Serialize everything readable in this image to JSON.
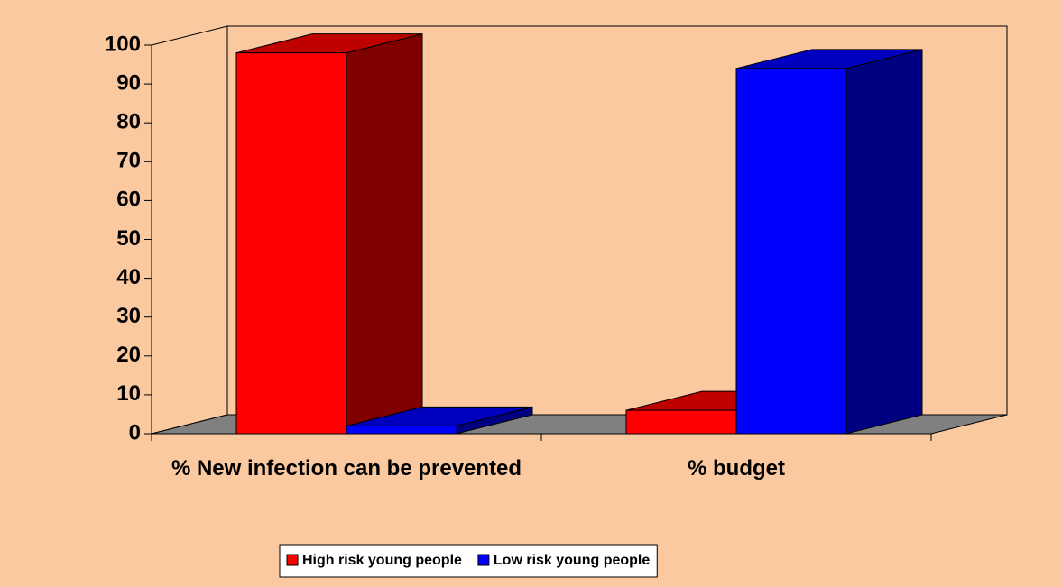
{
  "chart_data": {
    "type": "bar3d",
    "categories": [
      "% New infection can be prevented",
      "% budget"
    ],
    "series": [
      {
        "name": "High risk young people",
        "color": "#ff0000",
        "values": [
          98,
          6
        ]
      },
      {
        "name": "Low risk young people",
        "color": "#0000ff",
        "values": [
          2,
          94
        ]
      }
    ],
    "ylim": [
      0,
      100
    ],
    "yticks": [
      0,
      10,
      20,
      30,
      40,
      50,
      60,
      70,
      80,
      90,
      100
    ],
    "grid": false,
    "legend": "bottom"
  }
}
